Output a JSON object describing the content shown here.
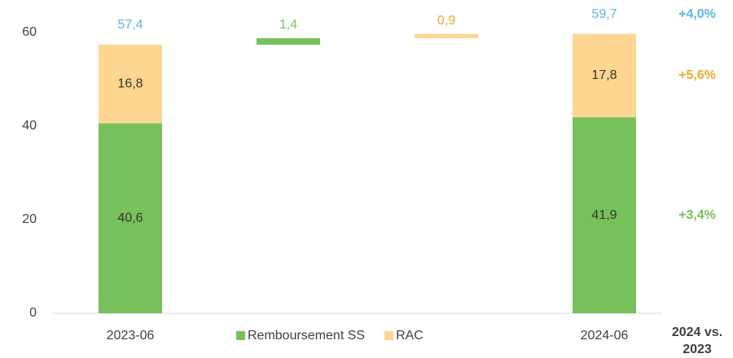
{
  "chart_data": {
    "type": "waterfall",
    "categories": [
      "2023-06",
      null,
      null,
      "2024-06"
    ],
    "series": [
      {
        "name": "Remboursement SS",
        "color": "#77c15a",
        "label_color": "#77c15a",
        "values": [
          40.6,
          1.4,
          null,
          41.9
        ],
        "value_labels": [
          "40,6",
          "1,4",
          null,
          "41,9"
        ],
        "change_label": "+3,4%"
      },
      {
        "name": "RAC",
        "color": "#ffd68f",
        "label_color": "#f5a623",
        "values": [
          16.8,
          null,
          0.9,
          17.8
        ],
        "value_labels": [
          "16,8",
          null,
          "0,9",
          "17,8"
        ],
        "change_label": "+5,6%"
      }
    ],
    "totals": {
      "color": "#5bb8e0",
      "values": [
        57.4,
        null,
        null,
        59.7
      ],
      "value_labels": [
        "57,4",
        null,
        null,
        "59,7"
      ],
      "change_label": "+4,0%"
    },
    "comparison_title": "2024 vs. 2023",
    "ylim": [
      0,
      60
    ],
    "yticks": [
      0,
      20,
      40,
      60
    ],
    "grid": false,
    "legend": "bottom"
  }
}
